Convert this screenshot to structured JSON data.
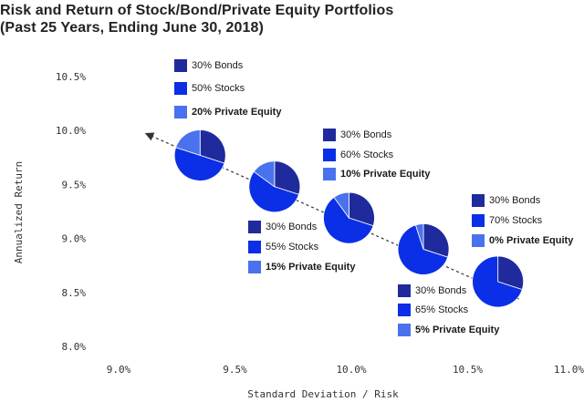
{
  "title": {
    "line1": "Risk and Return of Stock/Bond/Private Equity Portfolios",
    "line2": "(Past 25 Years, Ending June 30, 2018)"
  },
  "colors": {
    "bonds": "#1f2a9c",
    "stocks": "#0a2fe6",
    "pe": "#4a72ee",
    "arrow": "#333333"
  },
  "chart_data": {
    "type": "scatter",
    "marker": "pie",
    "title": "Risk and Return of Stock/Bond/Private Equity Portfolios (Past 25 Years, Ending June 30, 2018)",
    "xlabel": "Standard Deviation / Risk",
    "ylabel": "Annualized Return",
    "xlim": [
      9.0,
      11.0
    ],
    "ylim": [
      8.0,
      10.5
    ],
    "x_ticks": [
      "9.0%",
      "9.5%",
      "10.0%",
      "10.5%",
      "11.0%"
    ],
    "y_ticks": [
      "10.5%",
      "10.0%",
      "9.5%",
      "9.0%",
      "8.5%",
      "8.0%"
    ],
    "trend_arrow": {
      "from": [
        10.72,
        8.44
      ],
      "to": [
        9.13,
        9.96
      ]
    },
    "points": [
      {
        "x": 9.35,
        "y": 9.77,
        "bonds": 30,
        "stocks": 50,
        "pe": 20,
        "labels": [
          "30% Bonds",
          "50% Stocks",
          "20% Private Equity"
        ]
      },
      {
        "x": 9.67,
        "y": 9.48,
        "bonds": 30,
        "stocks": 55,
        "pe": 15,
        "labels": [
          "30% Bonds",
          "55% Stocks",
          "15% Private Equity"
        ]
      },
      {
        "x": 9.99,
        "y": 9.19,
        "bonds": 30,
        "stocks": 60,
        "pe": 10,
        "labels": [
          "30% Bonds",
          "60% Stocks",
          "10% Private Equity"
        ]
      },
      {
        "x": 10.31,
        "y": 8.9,
        "bonds": 30,
        "stocks": 65,
        "pe": 5,
        "labels": [
          "30% Bonds",
          "65% Stocks",
          "5%  Private Equity"
        ]
      },
      {
        "x": 10.63,
        "y": 8.6,
        "bonds": 30,
        "stocks": 70,
        "pe": 0,
        "labels": [
          "30% Bonds",
          "70% Stocks",
          "0%  Private Equity"
        ]
      }
    ]
  }
}
